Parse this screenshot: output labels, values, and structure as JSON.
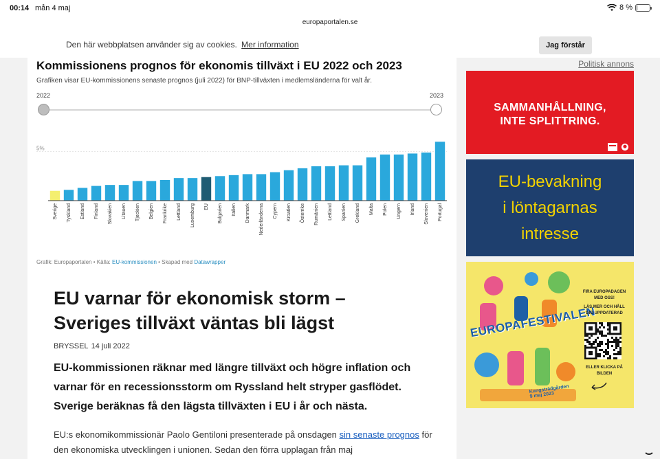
{
  "statusbar": {
    "time": "00:14",
    "date": "mån 4 maj",
    "battery": "8 %",
    "battery_level": 0.08
  },
  "browser": {
    "url": "europaportalen.se"
  },
  "cookie": {
    "message": "Den här webbplatsen använder sig av cookies.",
    "link": "Mer information",
    "button": "Jag förstår"
  },
  "chart": {
    "title": "Kommissionens prognos för ekonomis tillväxt i EU 2022 och 2023",
    "subtitle": "Grafiken visar EU-kommissionens senaste prognos (juli 2022) för BNP-tillväxten i medlemsländerna för valt år.",
    "slider_start": "2022",
    "slider_end": "2023",
    "credit_prefix": "Grafik: Europaportalen • Källa:",
    "credit_source": "EU-kommissionen",
    "credit_middle": "• Skapad med",
    "credit_tool": "Datawrapper"
  },
  "chart_data": {
    "type": "bar",
    "title": "Kommissionens prognos för ekonomis tillväxt i EU 2022 och 2023",
    "categories": [
      "Sverige",
      "Tyskland",
      "Estland",
      "Finland",
      "Slovakien",
      "Litauen",
      "Tjeckien",
      "Belgien",
      "Frankrike",
      "Lettland",
      "Luxemburg",
      "EU",
      "Bulgarien",
      "Italien",
      "Danmark",
      "Nederländerna",
      "Cypern",
      "Kroatien",
      "Österrike",
      "Rumänien",
      "Lettland",
      "Spanien",
      "Grekland",
      "Malta",
      "Polen",
      "Ungern",
      "Irland",
      "Slovenien",
      "Portugal"
    ],
    "values": [
      1.0,
      1.1,
      1.3,
      1.5,
      1.6,
      1.6,
      2.0,
      2.0,
      2.1,
      2.3,
      2.3,
      2.4,
      2.5,
      2.6,
      2.7,
      2.7,
      2.9,
      3.1,
      3.3,
      3.5,
      3.5,
      3.6,
      3.6,
      4.4,
      4.7,
      4.7,
      4.8,
      4.9,
      6.0
    ],
    "ylim": [
      0,
      7
    ],
    "yticks": [
      {
        "value": 5,
        "label": "5%"
      }
    ],
    "highlight": {
      "Sverige": "#f4ef6f",
      "EU": "#1f5c73"
    },
    "bar_color": "#2aa8dc",
    "selected_year": "2023"
  },
  "article": {
    "headline": "EU varnar för ekonomisk storm – Sveriges tillväxt väntas bli lägst",
    "location": "BRYSSEL",
    "date": "14 juli 2022",
    "lead": "EU-kommissionen räknar med längre tillväxt och högre inflation och varnar för en recessionsstorm om Ryssland helt stryper gasflödet. Sverige beräknas få den lägsta tillväxten i EU i år och nästa.",
    "body_before": "EU:s ekonomikommissionär Paolo Gentiloni presenterade på onsdagen ",
    "body_link": "sin senaste prognos",
    "body_after": " för den ekonomiska utvecklingen i unionen. Sedan den förra upplagan från maj"
  },
  "sidebar": {
    "political_ad": "Politisk annons",
    "ad1": {
      "line1": "SAMMANHÅLLNING,",
      "line2": "INTE SPLITTRING.",
      "color": "#e31b23"
    },
    "ad2": {
      "line1": "EU-bevakning",
      "line2": "i löntagarnas",
      "line3": "intresse",
      "color": "#1e3f6e",
      "text_color": "#f2d200"
    },
    "ad3": {
      "title": "EUROPAFESTIVALEN",
      "invite": "FIRA EUROPADAGEN MED OSS!",
      "read_more": "LÄS MER OCH HÅLL DIG UPPDATERAD",
      "cta": "ELLER KLICKA PÅ BILDEN",
      "venue": "Kungsträdgården",
      "date": "9 maj 2023"
    }
  }
}
